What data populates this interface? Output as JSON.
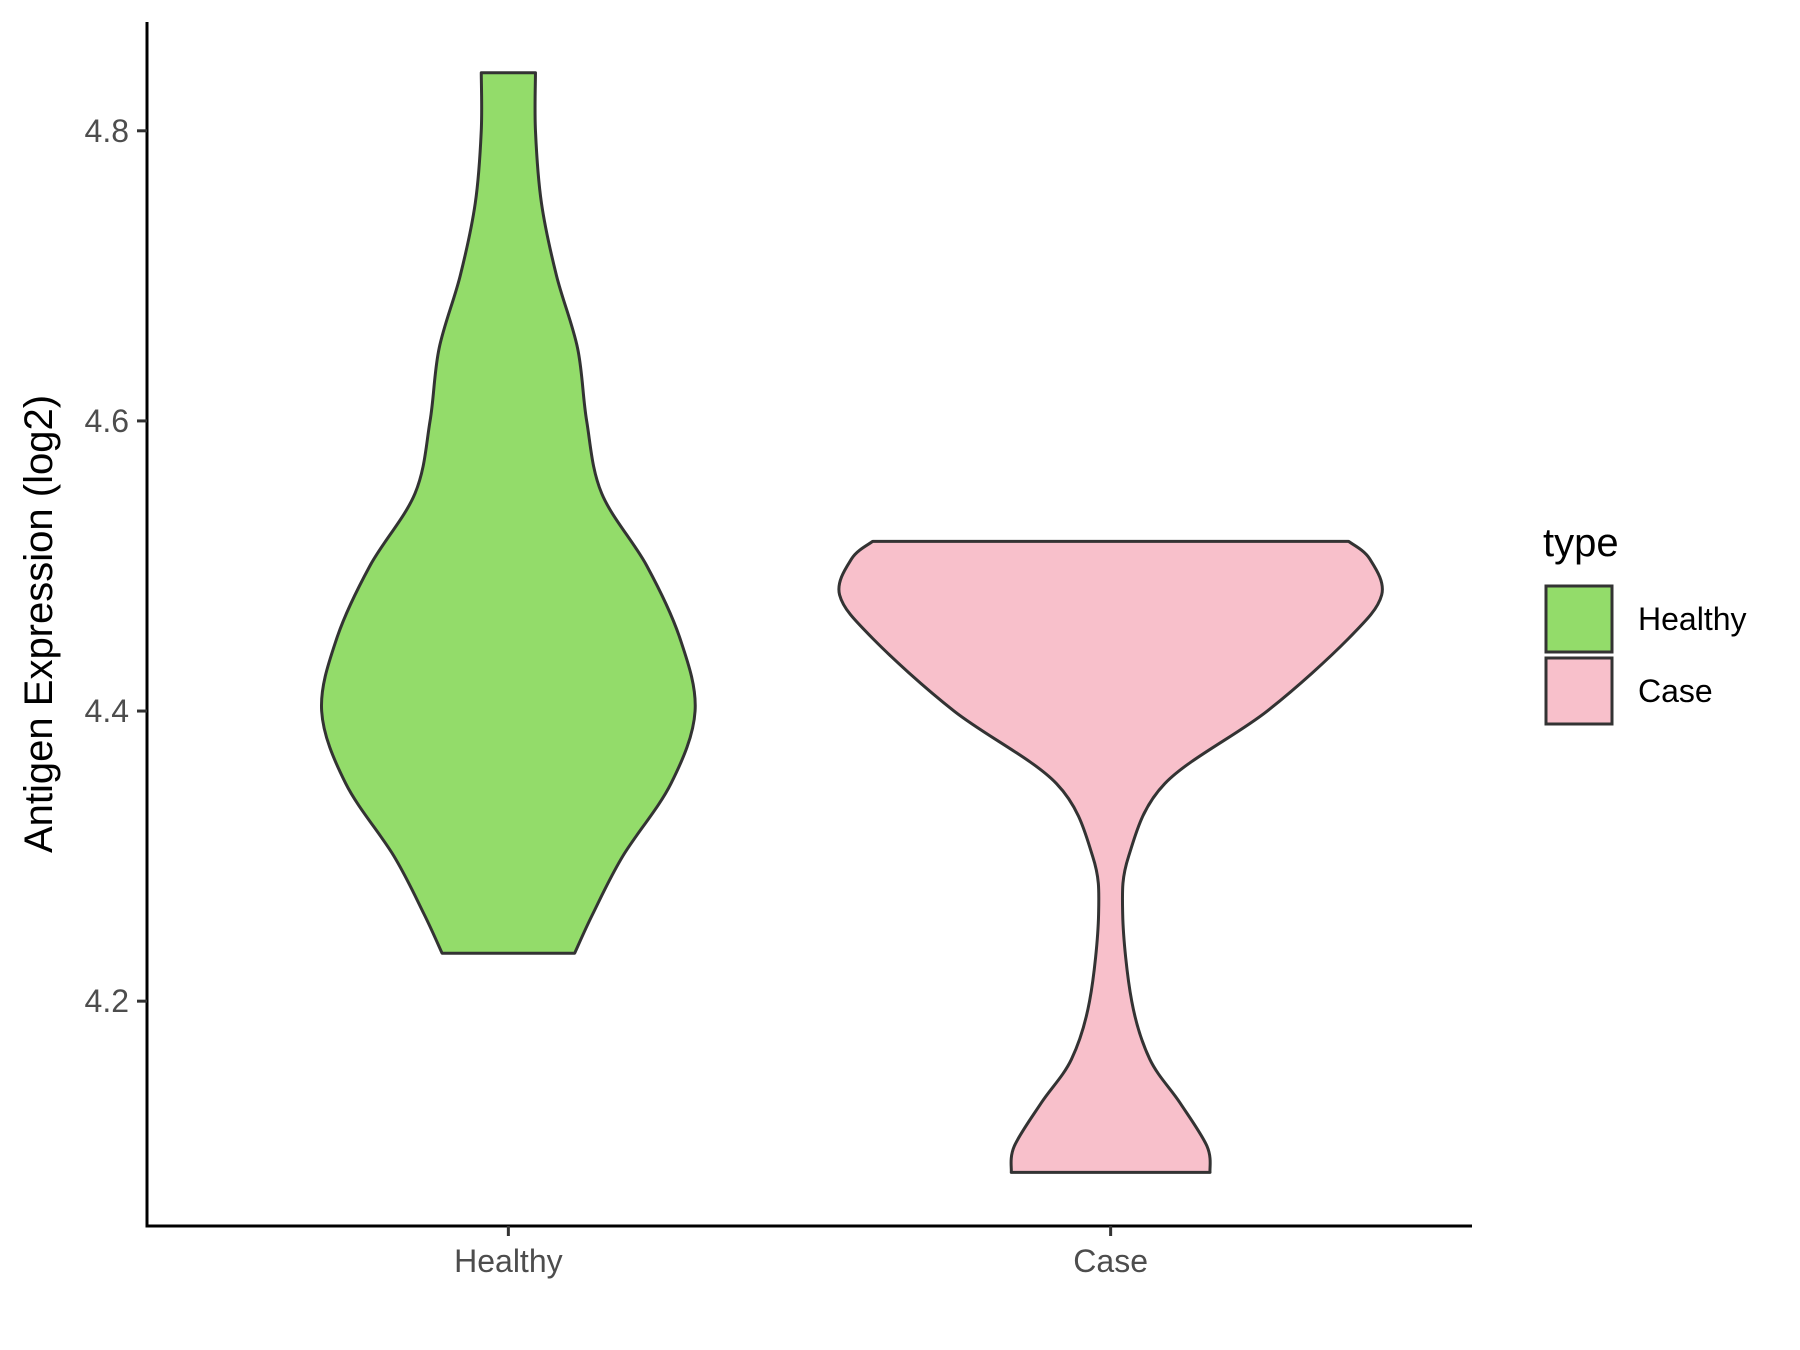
{
  "chart_data": {
    "type": "violin",
    "title": "",
    "xlabel": "",
    "ylabel": "Antigen Expression (log2)",
    "ylim": [
      4.045,
      4.875
    ],
    "y_ticks": [
      4.2,
      4.4,
      4.6,
      4.8
    ],
    "y_tick_labels": [
      "4.2",
      "4.4",
      "4.6",
      "4.8"
    ],
    "categories": [
      "Healthy",
      "Case"
    ],
    "legend": {
      "title": "type",
      "position": "right",
      "entries": [
        {
          "label": "Healthy",
          "color": "#93dc6a"
        },
        {
          "label": "Case",
          "color": "#f8c0cb"
        }
      ]
    },
    "series": [
      {
        "category": "Healthy",
        "color": "#93dc6a",
        "y_min": 4.233,
        "y_max": 4.84,
        "density_profile": [
          {
            "y": 4.233,
            "half_width": 0.11
          },
          {
            "y": 4.26,
            "half_width": 0.14
          },
          {
            "y": 4.3,
            "half_width": 0.19
          },
          {
            "y": 4.35,
            "half_width": 0.27
          },
          {
            "y": 4.4,
            "half_width": 0.31
          },
          {
            "y": 4.45,
            "half_width": 0.285
          },
          {
            "y": 4.5,
            "half_width": 0.23
          },
          {
            "y": 4.55,
            "half_width": 0.155
          },
          {
            "y": 4.6,
            "half_width": 0.13
          },
          {
            "y": 4.65,
            "half_width": 0.115
          },
          {
            "y": 4.7,
            "half_width": 0.08
          },
          {
            "y": 4.75,
            "half_width": 0.055
          },
          {
            "y": 4.8,
            "half_width": 0.045
          },
          {
            "y": 4.84,
            "half_width": 0.045
          }
        ]
      },
      {
        "category": "Case",
        "color": "#f8c0cb",
        "y_min": 4.082,
        "y_max": 4.517,
        "density_profile": [
          {
            "y": 4.082,
            "half_width": 0.165
          },
          {
            "y": 4.1,
            "half_width": 0.16
          },
          {
            "y": 4.13,
            "half_width": 0.115
          },
          {
            "y": 4.16,
            "half_width": 0.065
          },
          {
            "y": 4.2,
            "half_width": 0.035
          },
          {
            "y": 4.26,
            "half_width": 0.02
          },
          {
            "y": 4.3,
            "half_width": 0.03
          },
          {
            "y": 4.35,
            "half_width": 0.09
          },
          {
            "y": 4.4,
            "half_width": 0.26
          },
          {
            "y": 4.45,
            "half_width": 0.395
          },
          {
            "y": 4.48,
            "half_width": 0.45
          },
          {
            "y": 4.505,
            "half_width": 0.43
          },
          {
            "y": 4.517,
            "half_width": 0.395
          }
        ]
      }
    ]
  }
}
